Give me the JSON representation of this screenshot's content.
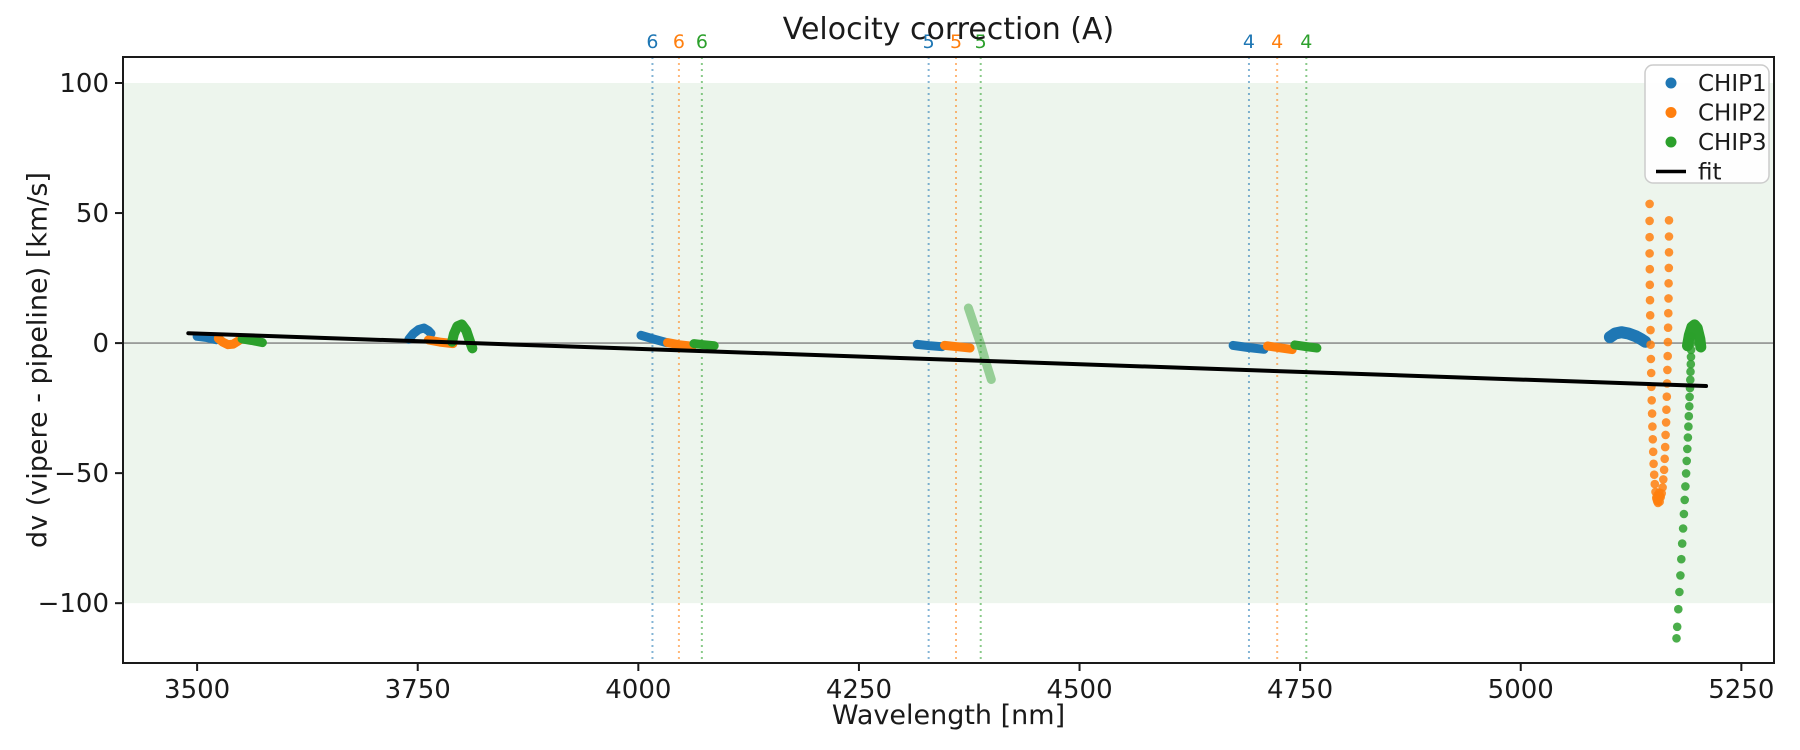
{
  "chart": {
    "title": "Velocity correction (A)",
    "xlabel": "Wavelength [nm]",
    "ylabel": "dv (vipere - pipeline) [km/s]"
  },
  "legend": {
    "position": "upper right",
    "items": [
      {
        "label": "CHIP1",
        "marker": "dot",
        "color": "#1f77b4"
      },
      {
        "label": "CHIP2",
        "marker": "dot",
        "color": "#ff7f0e"
      },
      {
        "label": "CHIP3",
        "marker": "dot",
        "color": "#2ca02c"
      },
      {
        "label": "fit",
        "marker": "line",
        "color": "#000000"
      }
    ]
  },
  "chart_data": {
    "type": "scatter",
    "title": "Velocity correction (A)",
    "xlabel": "Wavelength [nm]",
    "ylabel": "dv (vipere - pipeline) [km/s]",
    "xlim": [
      3416,
      5287
    ],
    "ylim": [
      -123,
      110
    ],
    "xticks": [
      3500,
      3750,
      4000,
      4250,
      4500,
      4750,
      5000,
      5250
    ],
    "yticks": [
      100,
      50,
      0,
      -50,
      -100
    ],
    "grid": false,
    "colors": {
      "CHIP1": "#1f77b4",
      "CHIP2": "#ff7f0e",
      "CHIP3": "#2ca02c",
      "fit": "#000000",
      "zero_line": "#7f7f7f",
      "band": "#edf5ed",
      "spine": "#1a1a1a"
    },
    "band": {
      "ymin": -100,
      "ymax": 100
    },
    "zero_line": {
      "y": 0
    },
    "fit_line": {
      "name": "fit",
      "points": [
        [
          3490,
          3.8
        ],
        [
          5210,
          -16.5
        ]
      ]
    },
    "vline_groups": [
      {
        "label": "6",
        "lines": [
          {
            "series": "CHIP1",
            "x": 4016
          },
          {
            "series": "CHIP2",
            "x": 4046
          },
          {
            "series": "CHIP3",
            "x": 4072
          }
        ]
      },
      {
        "label": "5",
        "lines": [
          {
            "series": "CHIP1",
            "x": 4329
          },
          {
            "series": "CHIP2",
            "x": 4360
          },
          {
            "series": "CHIP3",
            "x": 4388
          }
        ]
      },
      {
        "label": "4",
        "lines": [
          {
            "series": "CHIP1",
            "x": 4692
          },
          {
            "series": "CHIP2",
            "x": 4724
          },
          {
            "series": "CHIP3",
            "x": 4757
          }
        ]
      }
    ],
    "clusters": [
      {
        "series": "CHIP1",
        "shape": "strip",
        "width": 9,
        "opacity": 1,
        "points": [
          [
            3500,
            2.6
          ],
          [
            3510,
            2.2
          ],
          [
            3522,
            1.3
          ]
        ]
      },
      {
        "series": "CHIP2",
        "shape": "strip",
        "width": 9,
        "opacity": 1,
        "points": [
          [
            3524,
            1.8
          ],
          [
            3529,
            0.4
          ],
          [
            3535,
            -0.6
          ],
          [
            3541,
            -0.4
          ],
          [
            3546,
            0.7
          ],
          [
            3549,
            1.4
          ]
        ]
      },
      {
        "series": "CHIP3",
        "shape": "strip",
        "width": 9,
        "opacity": 1,
        "points": [
          [
            3551,
            1.6
          ],
          [
            3562,
            1.0
          ],
          [
            3574,
            0.2
          ]
        ]
      },
      {
        "series": "CHIP1",
        "shape": "strip",
        "width": 9,
        "opacity": 1,
        "points": [
          [
            3740,
            1.5
          ],
          [
            3745,
            3.6
          ],
          [
            3751,
            5.2
          ],
          [
            3757,
            5.8
          ],
          [
            3762,
            4.8
          ],
          [
            3765,
            3.7
          ]
        ]
      },
      {
        "series": "CHIP2",
        "shape": "strip",
        "width": 9,
        "opacity": 1,
        "points": [
          [
            3762,
            1.2
          ],
          [
            3775,
            0.4
          ],
          [
            3790,
            -0.2
          ]
        ]
      },
      {
        "series": "CHIP3",
        "shape": "strip",
        "width": 10,
        "opacity": 1,
        "points": [
          [
            3789,
            0.5
          ],
          [
            3791,
            3.5
          ],
          [
            3795,
            6.5
          ],
          [
            3800,
            7.2
          ],
          [
            3805,
            4.8
          ],
          [
            3809,
            0.8
          ],
          [
            3812,
            -2.0
          ]
        ]
      },
      {
        "series": "CHIP1",
        "shape": "strip",
        "width": 9,
        "opacity": 1,
        "points": [
          [
            4003,
            3.0
          ],
          [
            4018,
            1.5
          ],
          [
            4032,
            0.2
          ]
        ]
      },
      {
        "series": "CHIP2",
        "shape": "strip",
        "width": 9,
        "opacity": 1,
        "points": [
          [
            4033,
            0.2
          ],
          [
            4046,
            -0.6
          ],
          [
            4061,
            -1.2
          ]
        ]
      },
      {
        "series": "CHIP3",
        "shape": "strip",
        "width": 9,
        "opacity": 1,
        "points": [
          [
            4063,
            -0.2
          ],
          [
            4074,
            -0.6
          ],
          [
            4086,
            -1.0
          ]
        ]
      },
      {
        "series": "CHIP1",
        "shape": "strip",
        "width": 9,
        "opacity": 1,
        "points": [
          [
            4316,
            -0.5
          ],
          [
            4330,
            -1.0
          ],
          [
            4344,
            -1.4
          ]
        ]
      },
      {
        "series": "CHIP2",
        "shape": "strip",
        "width": 9,
        "opacity": 1,
        "points": [
          [
            4347,
            -0.9
          ],
          [
            4361,
            -1.4
          ],
          [
            4376,
            -1.9
          ]
        ]
      },
      {
        "series": "CHIP3",
        "shape": "strip",
        "width": 9,
        "opacity": 0.45,
        "points": [
          [
            4374,
            13.5
          ],
          [
            4381,
            6.5
          ],
          [
            4388,
            -0.5
          ],
          [
            4394,
            -7.5
          ],
          [
            4400,
            -14.0
          ]
        ]
      },
      {
        "series": "CHIP1",
        "shape": "strip",
        "width": 9,
        "opacity": 1,
        "points": [
          [
            4674,
            -0.9
          ],
          [
            4691,
            -1.7
          ],
          [
            4709,
            -2.4
          ]
        ]
      },
      {
        "series": "CHIP2",
        "shape": "strip",
        "width": 9,
        "opacity": 1,
        "points": [
          [
            4713,
            -1.1
          ],
          [
            4727,
            -1.8
          ],
          [
            4741,
            -2.5
          ]
        ]
      },
      {
        "series": "CHIP3",
        "shape": "strip",
        "width": 9,
        "opacity": 1,
        "points": [
          [
            4744,
            -0.7
          ],
          [
            4756,
            -1.3
          ],
          [
            4769,
            -1.9
          ]
        ]
      },
      {
        "series": "CHIP1",
        "shape": "strip",
        "width": 12,
        "opacity": 1,
        "points": [
          [
            5101,
            2.3
          ],
          [
            5107,
            3.7
          ],
          [
            5114,
            4.2
          ],
          [
            5122,
            3.7
          ],
          [
            5130,
            2.7
          ],
          [
            5136,
            1.6
          ],
          [
            5141,
            0.5
          ]
        ]
      },
      {
        "series": "CHIP2",
        "shape": "dots",
        "radius": 4.3,
        "opacity": 0.85,
        "points": [
          [
            5146,
            53.5
          ],
          [
            5146,
            47.0
          ],
          [
            5146,
            40.7
          ],
          [
            5146,
            34.5
          ],
          [
            5146.2,
            28.4
          ],
          [
            5146.3,
            22.4
          ],
          [
            5146.5,
            16.5
          ],
          [
            5146.7,
            10.7
          ],
          [
            5147,
            5.0
          ],
          [
            5147.2,
            -0.6
          ],
          [
            5147.5,
            -6.1
          ],
          [
            5147.8,
            -11.5
          ],
          [
            5148.1,
            -16.8
          ],
          [
            5148.4,
            -22.0
          ],
          [
            5148.8,
            -27.1
          ],
          [
            5149.2,
            -32.1
          ],
          [
            5149.6,
            -37.0
          ],
          [
            5150.1,
            -41.8
          ],
          [
            5150.6,
            -46.4
          ],
          [
            5151.2,
            -50.6
          ],
          [
            5151.9,
            -54.2
          ],
          [
            5152.7,
            -57.2
          ],
          [
            5153.6,
            -59.4
          ],
          [
            5154.6,
            -60.8
          ],
          [
            5168,
            47.2
          ],
          [
            5168,
            41.0
          ],
          [
            5168,
            34.9
          ],
          [
            5167.8,
            28.9
          ],
          [
            5167.6,
            23.0
          ],
          [
            5167.4,
            17.2
          ],
          [
            5167.2,
            11.5
          ],
          [
            5167,
            5.9
          ],
          [
            5166.8,
            0.4
          ],
          [
            5166.5,
            -5.0
          ],
          [
            5166.2,
            -10.3
          ],
          [
            5165.9,
            -15.5
          ],
          [
            5165.5,
            -20.6
          ],
          [
            5165.1,
            -25.6
          ],
          [
            5164.7,
            -30.5
          ],
          [
            5164.2,
            -35.3
          ],
          [
            5163.7,
            -40.0
          ],
          [
            5163.1,
            -44.5
          ],
          [
            5162.4,
            -48.7
          ],
          [
            5161.6,
            -52.4
          ],
          [
            5160.7,
            -55.5
          ],
          [
            5159.7,
            -57.8
          ],
          [
            5158.6,
            -59.2
          ],
          [
            5155.5,
            -61.5
          ],
          [
            5156.5,
            -59.8
          ],
          [
            5157.5,
            -61.0
          ],
          [
            5155,
            -58.5
          ],
          [
            5157,
            -57.5
          ],
          [
            5156,
            -60.5
          ],
          [
            5158,
            -58.8
          ],
          [
            5154,
            -60.0
          ]
        ]
      },
      {
        "series": "CHIP3",
        "shape": "strip",
        "width": 11,
        "opacity": 1,
        "points": [
          [
            5189,
            -1.0
          ],
          [
            5191,
            3.0
          ],
          [
            5194,
            6.2
          ],
          [
            5197,
            7.0
          ],
          [
            5200,
            5.8
          ],
          [
            5203,
            1.5
          ],
          [
            5204,
            -1.5
          ]
        ]
      },
      {
        "series": "CHIP3",
        "shape": "dots",
        "radius": 4.3,
        "opacity": 0.85,
        "points": [
          [
            5193.5,
            2.5
          ],
          [
            5193.3,
            0.0
          ],
          [
            5193.1,
            -2.6
          ],
          [
            5192.9,
            -5.3
          ],
          [
            5192.7,
            -8.1
          ],
          [
            5192.4,
            -11.0
          ],
          [
            5192.1,
            -14.1
          ],
          [
            5191.8,
            -17.3
          ],
          [
            5191.4,
            -20.7
          ],
          [
            5191.0,
            -24.3
          ],
          [
            5190.5,
            -28.1
          ],
          [
            5190.0,
            -32.1
          ],
          [
            5189.4,
            -36.3
          ],
          [
            5188.8,
            -40.7
          ],
          [
            5188.1,
            -45.3
          ],
          [
            5187.4,
            -50.1
          ],
          [
            5186.6,
            -55.1
          ],
          [
            5185.8,
            -60.3
          ],
          [
            5184.9,
            -65.7
          ],
          [
            5184.0,
            -71.3
          ],
          [
            5183.0,
            -77.1
          ],
          [
            5182.0,
            -83.1
          ],
          [
            5180.9,
            -89.3
          ],
          [
            5179.8,
            -95.7
          ],
          [
            5178.6,
            -102.3
          ],
          [
            5177.3,
            -109.1
          ],
          [
            5176.5,
            -113.5
          ]
        ]
      }
    ]
  }
}
